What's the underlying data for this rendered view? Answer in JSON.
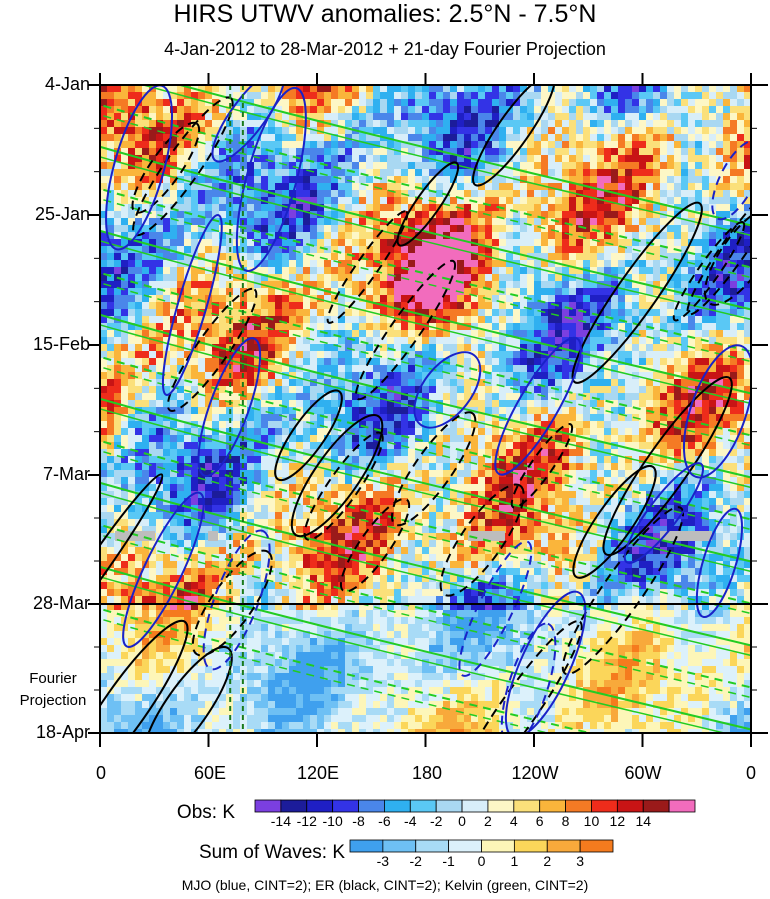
{
  "title": "HIRS UTWV anomalies: 2.5°N - 7.5°N",
  "subtitle": "4-Jan-2012 to 28-Mar-2012 + 21-day Fourier Projection",
  "footnote": "MJO (blue, CINT=2); ER (black, CINT=2); Kelvin (green, CINT=2)",
  "chart_data": {
    "type": "heatmap",
    "title": "HIRS UTWV anomalies: 2.5°N - 7.5°N",
    "subtitle": "4-Jan-2012 to 28-Mar-2012 + 21-day Fourier Projection",
    "x_axis": {
      "ticks": [
        "0",
        "60E",
        "120E",
        "180",
        "120W",
        "60W",
        "0"
      ],
      "range_deg_east": [
        0,
        360
      ]
    },
    "y_axis": {
      "ticks": [
        "4-Jan",
        "25-Jan",
        "15-Feb",
        "7-Mar",
        "28-Mar",
        "18-Apr"
      ],
      "reversed": true,
      "range": [
        "4-Jan-2012",
        "18-Apr-2012"
      ],
      "observation_end": "28-Mar",
      "projection_label": "Fourier Projection"
    },
    "obs_colorbar": {
      "title": "Obs: K",
      "levels": [
        "-14",
        "-12",
        "-10",
        "-8",
        "-6",
        "-4",
        "-2",
        "0",
        "2",
        "4",
        "6",
        "8",
        "10",
        "12",
        "14"
      ],
      "colors": [
        "#7b3fe0",
        "#1c1c9a",
        "#1f1fc4",
        "#3333e6",
        "#4a86ea",
        "#2fb0f0",
        "#5ac8f5",
        "#a9d8f2",
        "#d8eef9",
        "#fdf7c6",
        "#fbe07a",
        "#fab53b",
        "#f57a24",
        "#ee2c1b",
        "#c81415",
        "#9a1a1a",
        "#f26cbd"
      ]
    },
    "waves_colorbar": {
      "title": "Sum of Waves: K",
      "levels": [
        "-3",
        "-2",
        "-1",
        "0",
        "1",
        "2",
        "3"
      ],
      "colors": [
        "#3fa0ee",
        "#6ec0f4",
        "#a8dbf6",
        "#dcf1fb",
        "#fdf6b8",
        "#fbd65a",
        "#f8a93b",
        "#f57b1e"
      ]
    },
    "overlays": [
      "MJO (blue, CINT=2)",
      "ER (black, CINT=2)",
      "Kelvin (green, CINT=2)"
    ],
    "reference_lines": {
      "color": "#1a7a1a",
      "style": "dashed",
      "longitudes_deg_east": [
        72,
        79
      ]
    }
  }
}
